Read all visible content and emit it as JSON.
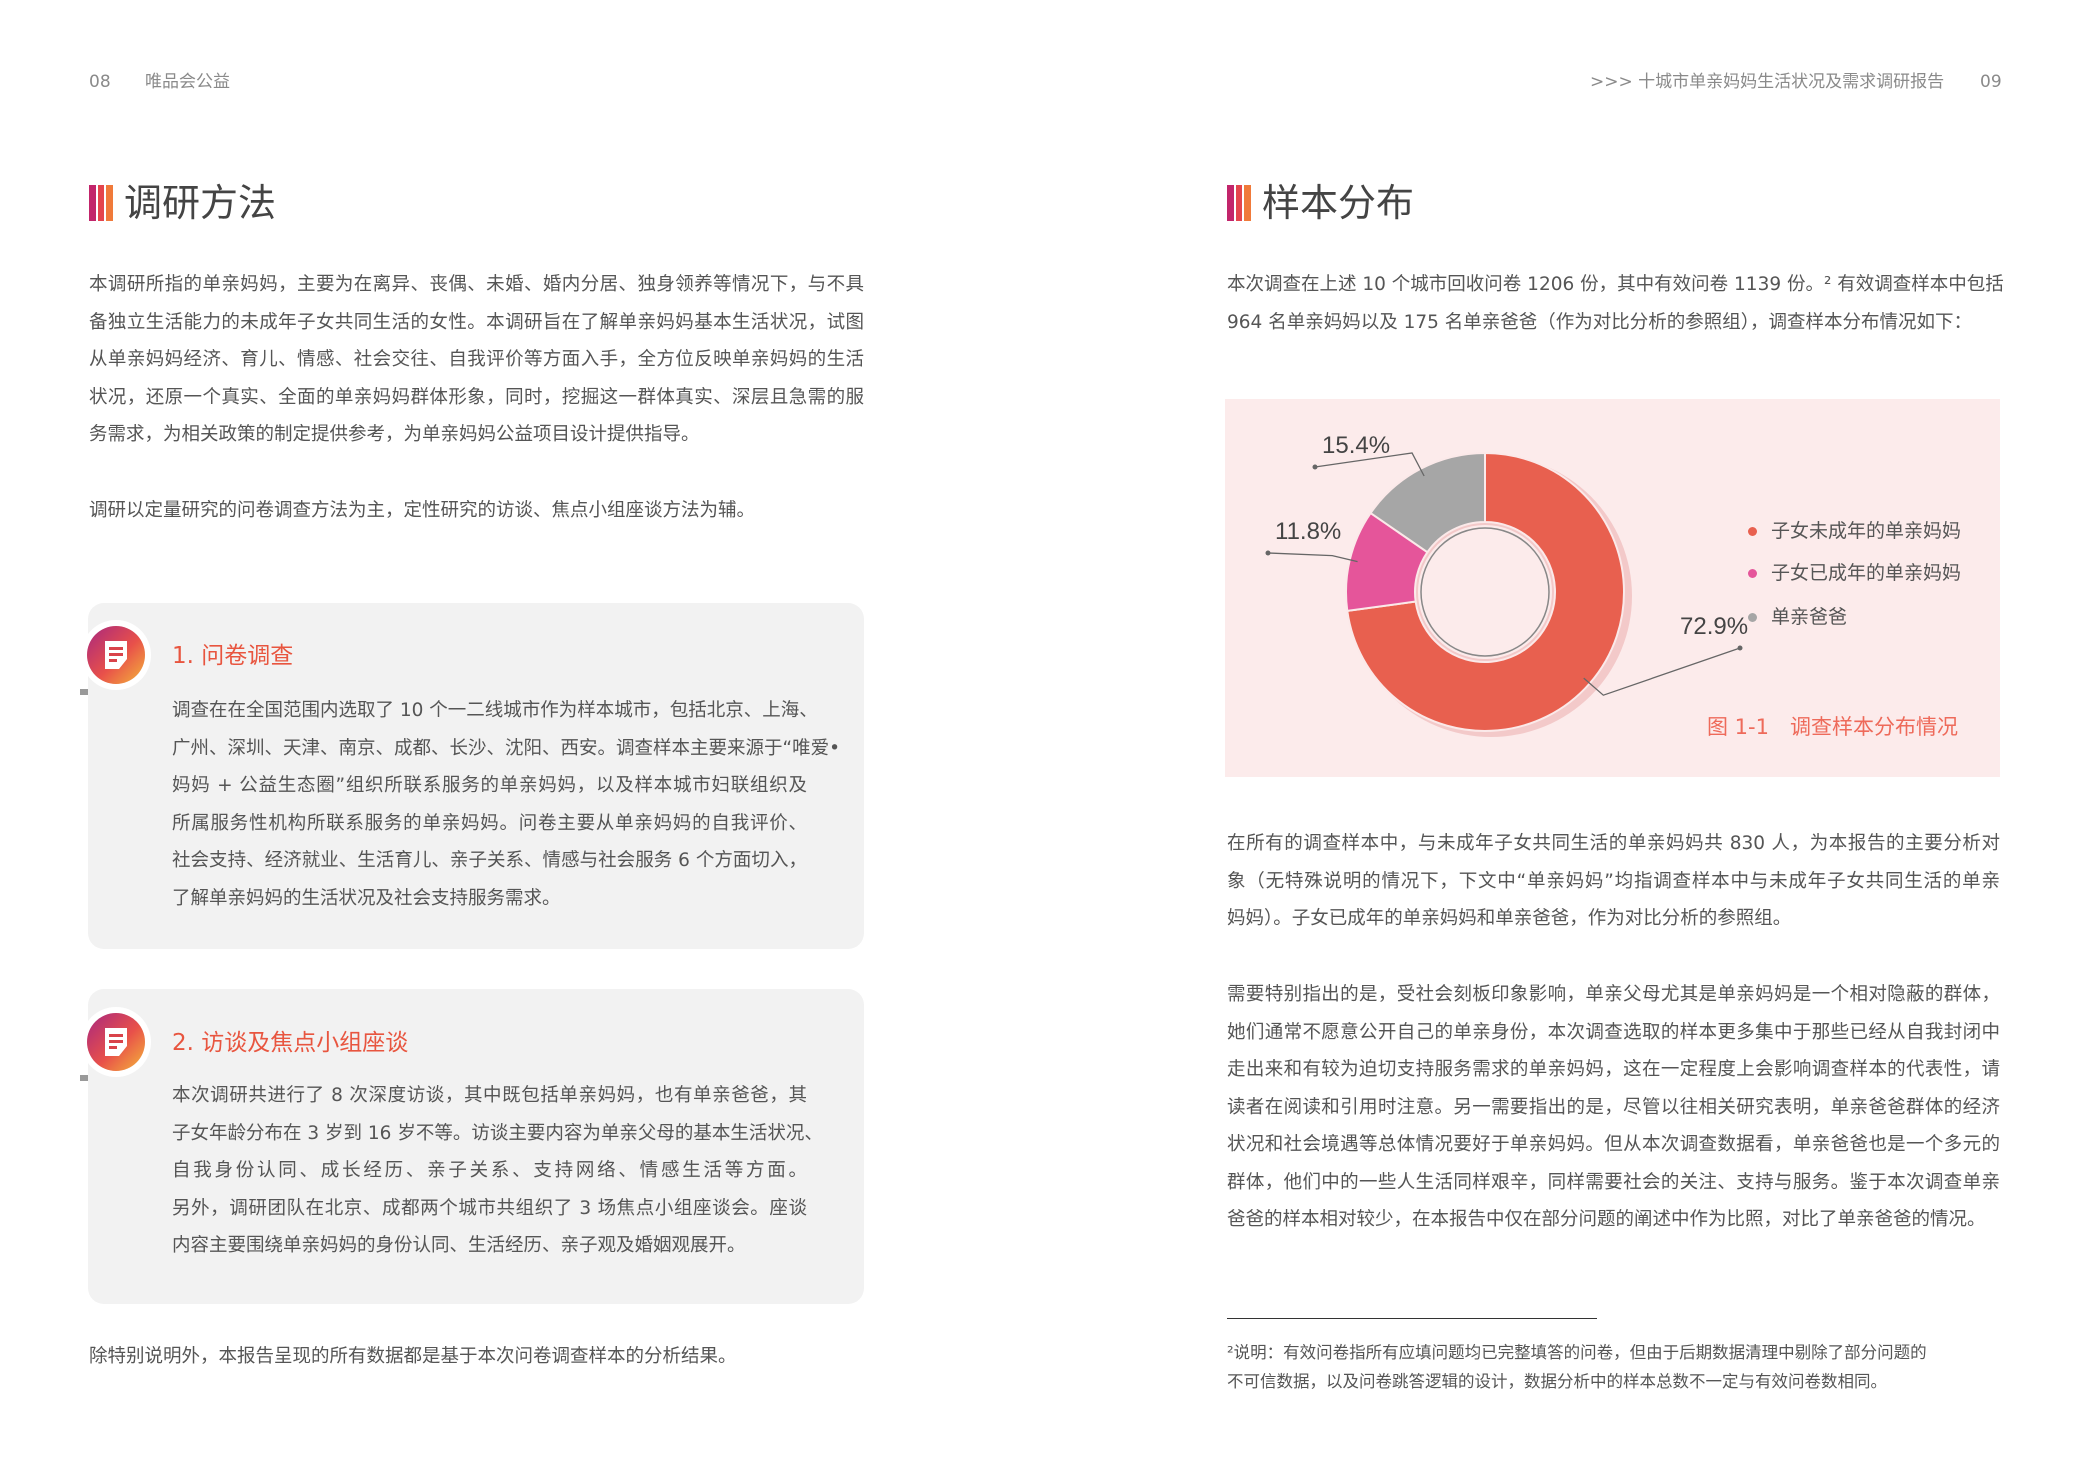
{
  "left_page": {
    "page_number": "08",
    "brand": "唯品会公益",
    "section_title": "调研方法",
    "intro": [
      "本调研所指的单亲妈妈，主要为在离异、丧偶、未婚、婚内分居、独身领养等情况下，与不具",
      "备独立生活能力的未成年子女共同生活的女性。本调研旨在了解单亲妈妈基本生活状况，试图",
      "从单亲妈妈经济、育儿、情感、社会交往、自我评价等方面入手，全方位反映单亲妈妈的生活",
      "状况，还原一个真实、全面的单亲妈妈群体形象，同时，挖掘这一群体真实、深层且急需的服",
      "务需求，为相关政策的制定提供参考，为单亲妈妈公益项目设计提供指导。"
    ],
    "method_summary": "调研以定量研究的问卷调查方法为主，定性研究的访谈、焦点小组座谈方法为辅。",
    "cards": [
      {
        "icon": "document-icon",
        "title": "1. 问卷调查",
        "lines": [
          "调查在在全国范围内选取了 10 个一二线城市作为样本城市，包括北京、上海、",
          "广州、深圳、天津、南京、成都、长沙、沈阳、西安。调查样本主要来源于“唯爱•",
          "妈妈 + 公益生态圈”组织所联系服务的单亲妈妈，以及样本城市妇联组织及",
          "所属服务性机构所联系服务的单亲妈妈。问卷主要从单亲妈妈的自我评价、",
          "社会支持、经济就业、生活育儿、亲子关系、情感与社会服务 6 个方面切入，",
          "了解单亲妈妈的生活状况及社会支持服务需求。"
        ]
      },
      {
        "icon": "document-icon",
        "title": "2. 访谈及焦点小组座谈",
        "lines": [
          "本次调研共进行了 8 次深度访谈，其中既包括单亲妈妈，也有单亲爸爸，其",
          "子女年龄分布在 3 岁到 16 岁不等。访谈主要内容为单亲父母的基本生活状况、",
          "自我身份认同、成长经历、亲子关系、支持网络、情感生活等方面。",
          "另外，调研团队在北京、成都两个城市共组织了 3 场焦点小组座谈会。座谈",
          "内容主要围绕单亲妈妈的身份认同、生活经历、亲子观及婚姻观展开。"
        ]
      }
    ],
    "closing": "除特别说明外，本报告呈现的所有数据都是基于本次问卷调查样本的分析结果。"
  },
  "right_page": {
    "page_number": "09",
    "running_title": ">>>  十城市单亲妈妈生活状况及需求调研报告",
    "section_title": "样本分布",
    "intro": [
      "本次调查在上述 10 个城市回收问卷 1206 份，其中有效问卷 1139 份。² 有效调查样本中包括",
      "964 名单亲妈妈以及 175 名单亲爸爸（作为对比分析的参照组），调查样本分布情况如下："
    ],
    "para2": [
      "在所有的调查样本中，与未成年子女共同生活的单亲妈妈共 830 人，为本报告的主要分析对",
      "象（无特殊说明的情况下，下文中“单亲妈妈”均指调查样本中与未成年子女共同生活的单亲",
      "妈妈）。子女已成年的单亲妈妈和单亲爸爸，作为对比分析的参照组。"
    ],
    "para3": [
      "需要特别指出的是，受社会刻板印象影响，单亲父母尤其是单亲妈妈是一个相对隐蔽的群体，",
      "她们通常不愿意公开自己的单亲身份，本次调查选取的样本更多集中于那些已经从自我封闭中",
      "走出来和有较为迫切支持服务需求的单亲妈妈，这在一定程度上会影响调查样本的代表性，请",
      "读者在阅读和引用时注意。另一需要指出的是，尽管以往相关研究表明，单亲爸爸群体的经济",
      "状况和社会境遇等总体情况要好于单亲妈妈。但从本次调查数据看，单亲爸爸也是一个多元的",
      "群体，他们中的一些人生活同样艰辛，同样需要社会的关注、支持与服务。鉴于本次调查单亲",
      "爸爸的样本相对较少，在本报告中仅在部分问题的阐述中作为比照，对比了单亲爸爸的情况。"
    ],
    "footnote": [
      "²说明：有效问卷指所有应填问题均已完整填答的问卷，但由于后期数据清理中剔除了部分问题的",
      "不可信数据，以及问卷跳答逻辑的设计，数据分析中的样本总数不一定与有效问卷数相同。"
    ]
  },
  "chart_data": {
    "type": "pie",
    "style": "donut",
    "title": "图 1-1　调查样本分布情况",
    "categories": [
      "子女未成年的单亲妈妈",
      "子女已成年的单亲妈妈",
      "单亲爸爸"
    ],
    "values": [
      72.9,
      11.8,
      15.4
    ],
    "labels": [
      "72.9%",
      "11.8%",
      "15.4%"
    ],
    "colors": [
      "#e8604f",
      "#e5559a",
      "#a6a6a6"
    ],
    "legend": "right"
  },
  "colors": {
    "accent": "#e8553f",
    "chart_background": "#fcebeb",
    "card_background": "#f2f2f2"
  }
}
